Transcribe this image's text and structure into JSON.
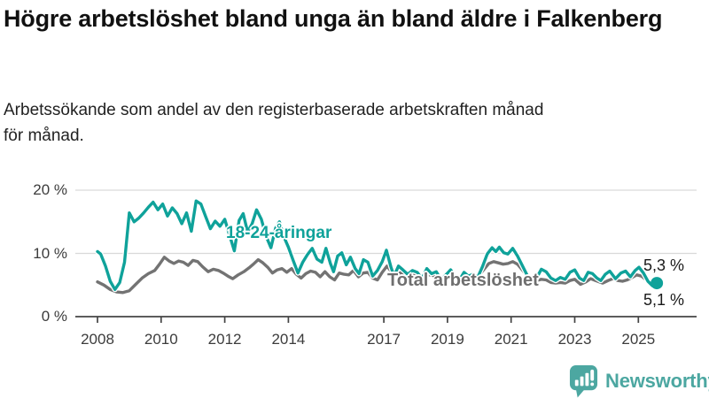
{
  "header": {
    "title": "Högre arbetslöshet bland unga än bland äldre i Falkenberg",
    "subtitle": "Arbetssökande som andel av den registerbaserade arbetskraften månad för månad."
  },
  "footer": {
    "brand_name": "Newsworthy",
    "brand_icon": "bar-chart-speech-bubble-icon"
  },
  "colors": {
    "youth_line": "#0fa29a",
    "total_line": "#737373",
    "grid": "#d9d9d9",
    "axis": "#444444",
    "text": "#1a1a1a",
    "brand_teal": "#4ca7a1"
  },
  "chart": {
    "y_ticks": [
      {
        "label": "20 %",
        "value": 20
      },
      {
        "label": "10 %",
        "value": 10
      },
      {
        "label": "0 %",
        "value": 0
      }
    ],
    "x_ticks": [
      {
        "label": "2008",
        "year": 2008
      },
      {
        "label": "2010",
        "year": 2010
      },
      {
        "label": "2012",
        "year": 2012
      },
      {
        "label": "2014",
        "year": 2014
      },
      {
        "label": "2017",
        "year": 2017
      },
      {
        "label": "2019",
        "year": 2019
      },
      {
        "label": "2021",
        "year": 2021
      },
      {
        "label": "2023",
        "year": 2023
      },
      {
        "label": "2025",
        "year": 2025
      }
    ]
  },
  "chart_data": {
    "type": "line",
    "title": "Högre arbetslöshet bland unga än bland äldre i Falkenberg",
    "subtitle": "Arbetssökande som andel av den registerbaserade arbetskraften månad för månad.",
    "unit": "percent",
    "x_unit": "decimal_year_monthly",
    "x_range": [
      2008,
      2025.7
    ],
    "ylim": [
      0,
      20
    ],
    "y_gridlines": [
      10,
      20
    ],
    "grid": true,
    "legend_position": "inline-labels",
    "series": [
      {
        "name": "18-24-åringar",
        "end_label": "5,3 %",
        "end_value": 5.3,
        "end_dot": true,
        "points": [
          [
            2008.0,
            10.3
          ],
          [
            2008.1,
            9.9
          ],
          [
            2008.25,
            8.0
          ],
          [
            2008.4,
            5.6
          ],
          [
            2008.55,
            4.3
          ],
          [
            2008.7,
            5.4
          ],
          [
            2008.85,
            8.6
          ],
          [
            2009.0,
            16.4
          ],
          [
            2009.15,
            15.0
          ],
          [
            2009.3,
            15.6
          ],
          [
            2009.45,
            16.4
          ],
          [
            2009.6,
            17.3
          ],
          [
            2009.75,
            18.1
          ],
          [
            2009.9,
            16.9
          ],
          [
            2010.05,
            17.8
          ],
          [
            2010.2,
            15.9
          ],
          [
            2010.35,
            17.2
          ],
          [
            2010.5,
            16.3
          ],
          [
            2010.65,
            14.7
          ],
          [
            2010.8,
            16.4
          ],
          [
            2010.95,
            13.5
          ],
          [
            2011.1,
            18.3
          ],
          [
            2011.25,
            17.8
          ],
          [
            2011.4,
            15.8
          ],
          [
            2011.55,
            13.9
          ],
          [
            2011.7,
            15.1
          ],
          [
            2011.85,
            14.3
          ],
          [
            2012.0,
            15.4
          ],
          [
            2012.15,
            12.9
          ],
          [
            2012.3,
            10.4
          ],
          [
            2012.45,
            15.2
          ],
          [
            2012.58,
            16.3
          ],
          [
            2012.72,
            13.4
          ],
          [
            2012.86,
            14.7
          ],
          [
            2013.0,
            16.9
          ],
          [
            2013.15,
            15.4
          ],
          [
            2013.3,
            12.7
          ],
          [
            2013.45,
            10.9
          ],
          [
            2013.6,
            14.0
          ],
          [
            2013.72,
            15.0
          ],
          [
            2013.86,
            12.6
          ],
          [
            2014.0,
            11.0
          ],
          [
            2014.15,
            8.9
          ],
          [
            2014.3,
            6.9
          ],
          [
            2014.45,
            8.6
          ],
          [
            2014.6,
            9.8
          ],
          [
            2014.75,
            10.8
          ],
          [
            2014.9,
            9.1
          ],
          [
            2015.05,
            8.6
          ],
          [
            2015.18,
            10.8
          ],
          [
            2015.32,
            8.4
          ],
          [
            2015.42,
            7.1
          ],
          [
            2015.55,
            9.6
          ],
          [
            2015.68,
            10.1
          ],
          [
            2015.82,
            8.2
          ],
          [
            2015.95,
            9.4
          ],
          [
            2016.1,
            7.6
          ],
          [
            2016.22,
            6.8
          ],
          [
            2016.36,
            9.0
          ],
          [
            2016.5,
            8.6
          ],
          [
            2016.65,
            6.4
          ],
          [
            2016.8,
            7.3
          ],
          [
            2016.95,
            8.7
          ],
          [
            2017.08,
            10.5
          ],
          [
            2017.22,
            7.9
          ],
          [
            2017.32,
            6.4
          ],
          [
            2017.46,
            8.0
          ],
          [
            2017.6,
            7.4
          ],
          [
            2017.75,
            6.7
          ],
          [
            2017.9,
            7.3
          ],
          [
            2018.05,
            7.0
          ],
          [
            2018.2,
            6.0
          ],
          [
            2018.35,
            7.6
          ],
          [
            2018.5,
            6.8
          ],
          [
            2018.65,
            7.1
          ],
          [
            2018.8,
            5.8
          ],
          [
            2018.95,
            6.6
          ],
          [
            2019.1,
            7.4
          ],
          [
            2019.25,
            6.3
          ],
          [
            2019.38,
            5.8
          ],
          [
            2019.52,
            7.0
          ],
          [
            2019.66,
            6.4
          ],
          [
            2019.8,
            6.7
          ],
          [
            2019.95,
            6.2
          ],
          [
            2020.1,
            7.9
          ],
          [
            2020.25,
            9.9
          ],
          [
            2020.4,
            10.9
          ],
          [
            2020.52,
            10.3
          ],
          [
            2020.63,
            11.0
          ],
          [
            2020.77,
            10.1
          ],
          [
            2020.9,
            9.9
          ],
          [
            2021.05,
            10.8
          ],
          [
            2021.2,
            9.6
          ],
          [
            2021.35,
            8.1
          ],
          [
            2021.5,
            6.6
          ],
          [
            2021.65,
            5.3
          ],
          [
            2021.8,
            6.1
          ],
          [
            2021.95,
            7.5
          ],
          [
            2022.1,
            7.1
          ],
          [
            2022.25,
            6.1
          ],
          [
            2022.4,
            5.7
          ],
          [
            2022.55,
            6.2
          ],
          [
            2022.7,
            5.9
          ],
          [
            2022.85,
            7.0
          ],
          [
            2023.0,
            7.4
          ],
          [
            2023.15,
            6.1
          ],
          [
            2023.28,
            5.7
          ],
          [
            2023.42,
            7.0
          ],
          [
            2023.56,
            6.8
          ],
          [
            2023.7,
            6.1
          ],
          [
            2023.82,
            5.7
          ],
          [
            2023.96,
            6.7
          ],
          [
            2024.1,
            7.2
          ],
          [
            2024.28,
            6.0
          ],
          [
            2024.45,
            6.9
          ],
          [
            2024.6,
            7.2
          ],
          [
            2024.75,
            6.3
          ],
          [
            2024.9,
            7.3
          ],
          [
            2025.02,
            7.8
          ],
          [
            2025.16,
            6.9
          ],
          [
            2025.3,
            5.6
          ],
          [
            2025.44,
            4.9
          ],
          [
            2025.58,
            5.3
          ]
        ]
      },
      {
        "name": "Total arbetslöshet",
        "end_label": "5,1 %",
        "end_value": 5.1,
        "end_dot": false,
        "points": [
          [
            2008.0,
            5.5
          ],
          [
            2008.2,
            5.0
          ],
          [
            2008.4,
            4.3
          ],
          [
            2008.6,
            3.9
          ],
          [
            2008.8,
            3.8
          ],
          [
            2009.0,
            4.1
          ],
          [
            2009.2,
            5.1
          ],
          [
            2009.4,
            6.1
          ],
          [
            2009.6,
            6.8
          ],
          [
            2009.8,
            7.3
          ],
          [
            2009.95,
            8.3
          ],
          [
            2010.1,
            9.4
          ],
          [
            2010.25,
            8.8
          ],
          [
            2010.4,
            8.4
          ],
          [
            2010.55,
            8.8
          ],
          [
            2010.7,
            8.6
          ],
          [
            2010.85,
            8.1
          ],
          [
            2011.0,
            8.9
          ],
          [
            2011.15,
            8.7
          ],
          [
            2011.3,
            7.9
          ],
          [
            2011.48,
            7.1
          ],
          [
            2011.64,
            7.5
          ],
          [
            2011.8,
            7.3
          ],
          [
            2011.95,
            6.9
          ],
          [
            2012.1,
            6.4
          ],
          [
            2012.25,
            6.0
          ],
          [
            2012.42,
            6.6
          ],
          [
            2012.6,
            7.1
          ],
          [
            2012.76,
            7.7
          ],
          [
            2012.9,
            8.3
          ],
          [
            2013.05,
            9.0
          ],
          [
            2013.2,
            8.5
          ],
          [
            2013.35,
            7.8
          ],
          [
            2013.5,
            6.9
          ],
          [
            2013.65,
            7.4
          ],
          [
            2013.8,
            7.6
          ],
          [
            2013.95,
            7.0
          ],
          [
            2014.1,
            7.6
          ],
          [
            2014.25,
            6.7
          ],
          [
            2014.4,
            6.1
          ],
          [
            2014.55,
            6.8
          ],
          [
            2014.7,
            7.2
          ],
          [
            2014.85,
            7.0
          ],
          [
            2015.0,
            6.3
          ],
          [
            2015.15,
            7.1
          ],
          [
            2015.3,
            6.3
          ],
          [
            2015.45,
            5.8
          ],
          [
            2015.6,
            6.9
          ],
          [
            2015.75,
            6.7
          ],
          [
            2015.9,
            6.6
          ],
          [
            2016.05,
            7.3
          ],
          [
            2016.2,
            6.3
          ],
          [
            2016.35,
            6.9
          ],
          [
            2016.5,
            7.0
          ],
          [
            2016.65,
            6.1
          ],
          [
            2016.8,
            5.8
          ],
          [
            2016.95,
            7.0
          ],
          [
            2017.1,
            8.0
          ],
          [
            2017.25,
            7.0
          ],
          [
            2017.4,
            6.6
          ],
          [
            2017.55,
            7.0
          ],
          [
            2017.7,
            6.5
          ],
          [
            2017.85,
            6.6
          ],
          [
            2018.0,
            6.9
          ],
          [
            2018.2,
            5.8
          ],
          [
            2018.35,
            6.6
          ],
          [
            2018.5,
            6.6
          ],
          [
            2018.65,
            6.3
          ],
          [
            2018.85,
            5.6
          ],
          [
            2019.0,
            6.2
          ],
          [
            2019.15,
            6.4
          ],
          [
            2019.35,
            5.8
          ],
          [
            2019.5,
            6.5
          ],
          [
            2019.65,
            6.3
          ],
          [
            2019.8,
            6.1
          ],
          [
            2019.95,
            6.3
          ],
          [
            2020.1,
            7.2
          ],
          [
            2020.3,
            8.4
          ],
          [
            2020.45,
            8.7
          ],
          [
            2020.6,
            8.5
          ],
          [
            2020.75,
            8.3
          ],
          [
            2020.9,
            8.4
          ],
          [
            2021.05,
            8.7
          ],
          [
            2021.2,
            8.3
          ],
          [
            2021.35,
            7.4
          ],
          [
            2021.5,
            6.5
          ],
          [
            2021.65,
            5.9
          ],
          [
            2021.8,
            5.7
          ],
          [
            2021.95,
            5.9
          ],
          [
            2022.1,
            5.8
          ],
          [
            2022.25,
            5.4
          ],
          [
            2022.4,
            5.3
          ],
          [
            2022.55,
            5.4
          ],
          [
            2022.7,
            5.3
          ],
          [
            2022.85,
            5.7
          ],
          [
            2023.0,
            5.9
          ],
          [
            2023.18,
            5.1
          ],
          [
            2023.35,
            5.5
          ],
          [
            2023.5,
            6.0
          ],
          [
            2023.65,
            5.7
          ],
          [
            2023.88,
            5.3
          ],
          [
            2024.05,
            5.7
          ],
          [
            2024.2,
            6.0
          ],
          [
            2024.35,
            5.7
          ],
          [
            2024.5,
            5.6
          ],
          [
            2024.65,
            5.8
          ],
          [
            2024.8,
            6.2
          ],
          [
            2024.95,
            6.6
          ],
          [
            2025.1,
            6.4
          ],
          [
            2025.25,
            5.8
          ],
          [
            2025.4,
            5.4
          ],
          [
            2025.58,
            5.1
          ]
        ]
      }
    ]
  }
}
